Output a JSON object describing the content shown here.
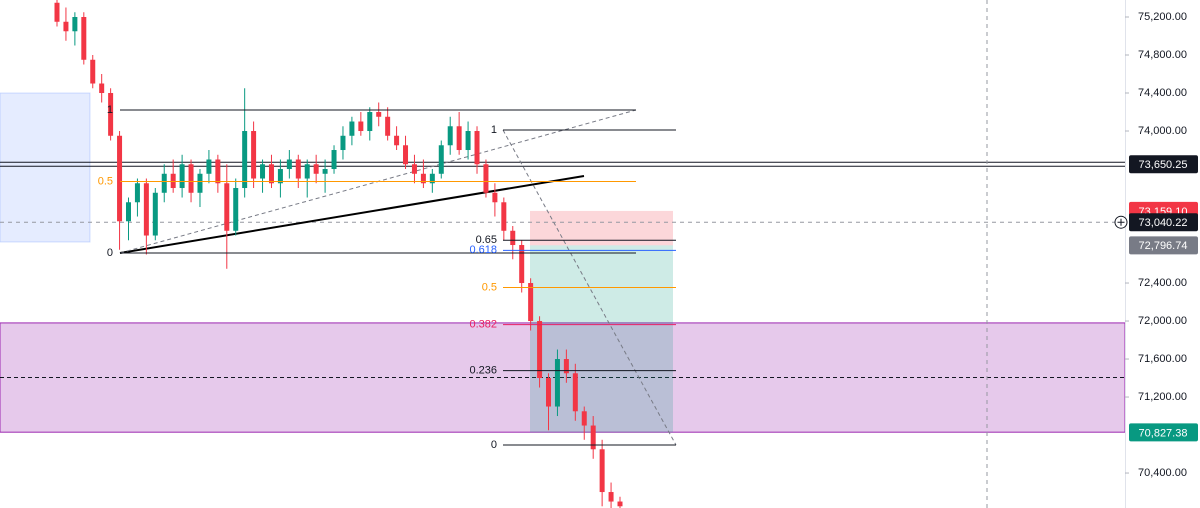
{
  "chart_data": {
    "type": "candlestick",
    "ylim": [
      70032,
      75379
    ],
    "yticks": [
      {
        "value": 75200,
        "label": "75,200.00"
      },
      {
        "value": 74800,
        "label": "74,800.00"
      },
      {
        "value": 74400,
        "label": "74,400.00"
      },
      {
        "value": 74000,
        "label": "74,000.00"
      },
      {
        "value": 72400,
        "label": "72,400.00"
      },
      {
        "value": 72000,
        "label": "72,000.00"
      },
      {
        "value": 71600,
        "label": "71,600.00"
      },
      {
        "value": 71200,
        "label": "71,200.00"
      },
      {
        "value": 70400,
        "label": "70,400.00"
      }
    ],
    "up_color": "#089981",
    "down_color": "#f23645",
    "candles": [
      [
        75350,
        75380,
        75100,
        75150
      ],
      [
        75150,
        75300,
        74950,
        75050
      ],
      [
        75050,
        75250,
        74900,
        75200
      ],
      [
        75200,
        75250,
        74700,
        74750
      ],
      [
        74750,
        74800,
        74450,
        74500
      ],
      [
        74500,
        74600,
        74300,
        74400
      ],
      [
        74400,
        74450,
        73900,
        73950
      ],
      [
        73950,
        74000,
        72750,
        73050
      ],
      [
        73050,
        73300,
        72850,
        73250
      ],
      [
        73250,
        73500,
        73100,
        73450
      ],
      [
        73450,
        73500,
        72700,
        72900
      ],
      [
        72900,
        73400,
        72850,
        73350
      ],
      [
        73350,
        73650,
        73250,
        73550
      ],
      [
        73550,
        73700,
        73350,
        73400
      ],
      [
        73400,
        73750,
        73300,
        73650
      ],
      [
        73650,
        73700,
        73250,
        73350
      ],
      [
        73350,
        73600,
        73200,
        73550
      ],
      [
        73550,
        73800,
        73450,
        73700
      ],
      [
        73700,
        73750,
        73350,
        73450
      ],
      [
        73450,
        73650,
        72550,
        72950
      ],
      [
        72950,
        73500,
        72900,
        73400
      ],
      [
        73400,
        74450,
        73300,
        74000
      ],
      [
        74000,
        74100,
        73400,
        73500
      ],
      [
        73500,
        73700,
        73350,
        73650
      ],
      [
        73650,
        73750,
        73400,
        73450
      ],
      [
        73450,
        73700,
        73300,
        73600
      ],
      [
        73600,
        73800,
        73500,
        73700
      ],
      [
        73700,
        73750,
        73400,
        73500
      ],
      [
        73500,
        73700,
        73300,
        73650
      ],
      [
        73650,
        73750,
        73450,
        73550
      ],
      [
        73550,
        73700,
        73350,
        73600
      ],
      [
        73600,
        73850,
        73550,
        73800
      ],
      [
        73800,
        74050,
        73700,
        73950
      ],
      [
        73950,
        74150,
        73850,
        74100
      ],
      [
        74100,
        74200,
        73950,
        74000
      ],
      [
        74000,
        74250,
        73900,
        74200
      ],
      [
        74200,
        74300,
        74050,
        74150
      ],
      [
        74150,
        74250,
        73900,
        73950
      ],
      [
        73950,
        74050,
        73800,
        73850
      ],
      [
        73850,
        73950,
        73600,
        73650
      ],
      [
        73650,
        73750,
        73450,
        73550
      ],
      [
        73550,
        73700,
        73400,
        73450
      ],
      [
        73450,
        73600,
        73350,
        73550
      ],
      [
        73550,
        73900,
        73500,
        73850
      ],
      [
        73850,
        74150,
        73750,
        74050
      ],
      [
        74050,
        74200,
        73750,
        73800
      ],
      [
        73800,
        74100,
        73700,
        74000
      ],
      [
        74000,
        74050,
        73550,
        73650
      ],
      [
        73650,
        73700,
        73300,
        73350
      ],
      [
        73350,
        73450,
        73100,
        73250
      ],
      [
        73250,
        73300,
        72850,
        72950
      ],
      [
        72950,
        73000,
        72650,
        72800
      ],
      [
        72800,
        72850,
        72300,
        72400
      ],
      [
        72400,
        72450,
        71900,
        72000
      ],
      [
        72000,
        72050,
        71300,
        71400
      ],
      [
        71400,
        71450,
        70850,
        71100
      ],
      [
        71100,
        71700,
        71000,
        71600
      ],
      [
        71600,
        71700,
        71350,
        71450
      ],
      [
        71450,
        71550,
        70950,
        71050
      ],
      [
        71050,
        71100,
        70750,
        70900
      ],
      [
        70900,
        71000,
        70550,
        70650
      ],
      [
        70650,
        70750,
        70050,
        70200
      ],
      [
        70200,
        70300,
        70000,
        70100
      ],
      [
        70100,
        70150,
        70000,
        70050
      ]
    ],
    "horizontal_line": {
      "value": 73650.25,
      "label": "73,650.25"
    },
    "crosshair": {
      "value": 73040.22,
      "label": "73,040.22"
    },
    "position": {
      "stop": {
        "value": 73159.1,
        "label": "73,159.10"
      },
      "entry": {
        "value": 72796.74,
        "label": "72,796.74"
      },
      "target": {
        "value": 70827.38,
        "label": "70,827.38"
      }
    },
    "supply_zone": [
      74400,
      72832
    ],
    "demand_zone": [
      71980,
      70830
    ],
    "fibs": [
      {
        "high": 74221,
        "low": 72716,
        "levels": [
          0,
          0.5,
          1
        ],
        "colors": [
          "#131722",
          "#ff9800",
          "#131722"
        ]
      },
      {
        "high": 74011,
        "low": 70695,
        "levels": [
          1,
          0.65,
          0.618,
          0.5,
          0.382,
          0.236,
          0
        ],
        "colors": [
          "#131722",
          "#131722",
          "#2962ff",
          "#ff9800",
          "#e91e63",
          "#131722",
          "#131722"
        ]
      }
    ]
  }
}
